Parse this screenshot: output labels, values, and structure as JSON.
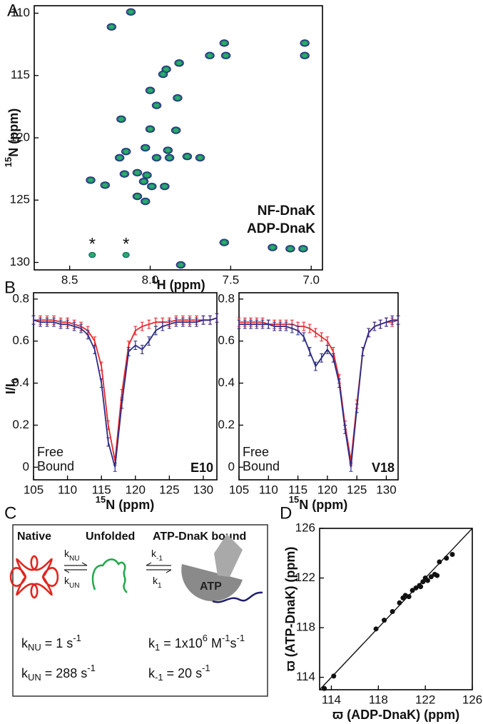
{
  "panel_labels": [
    "A",
    "B",
    "C",
    "D"
  ],
  "chart_data": [
    {
      "type": "scatter",
      "style": "contour",
      "xlabel": [
        {
          "text": "1",
          "pos": "sup"
        },
        {
          "text": "H (ppm)"
        }
      ],
      "ylabel": [
        {
          "text": "15",
          "pos": "sup"
        },
        {
          "text": "N (ppm)"
        }
      ],
      "xlim": [
        8.72,
        6.93
      ],
      "ylim": [
        130.6,
        109.4
      ],
      "xticks": [
        {
          "value": 8.5,
          "label": "8.5"
        },
        {
          "value": 8,
          "label": "8.0"
        },
        {
          "value": 7.5,
          "label": "7.5"
        },
        {
          "value": 7,
          "label": "7.0"
        }
      ],
      "yticks": [
        110,
        115,
        120,
        125,
        130
      ],
      "legend": "lower right",
      "annotations": [
        {
          "text": "*",
          "x": 8.36,
          "y": 128.6
        },
        {
          "text": "*",
          "x": 8.15,
          "y": 128.6
        }
      ],
      "series": [
        {
          "name": "NF-DnaK",
          "color": "#2e2d86",
          "x": [
            8.12,
            8.24,
            7.54,
            7.53,
            7.04,
            7.04,
            7.63,
            7.82,
            7.9,
            7.92,
            8.0,
            7.96,
            7.83,
            8.18,
            7.84,
            8.0,
            8.03,
            8.15,
            7.89,
            8.19,
            7.96,
            7.88,
            7.77,
            7.69,
            8.16,
            8.08,
            8.02,
            8.37,
            8.28,
            8.04,
            7.99,
            7.91,
            8.08,
            8.03,
            7.54,
            7.81,
            7.24,
            7.13,
            7.05
          ],
          "y": [
            109.9,
            111.1,
            112.4,
            113.4,
            112.4,
            113.4,
            113.4,
            114.0,
            114.5,
            114.9,
            116.2,
            117.4,
            116.8,
            118.5,
            119.4,
            119.3,
            120.8,
            121.1,
            121.0,
            121.6,
            121.6,
            121.6,
            121.5,
            121.6,
            122.9,
            122.8,
            123.0,
            123.4,
            123.8,
            123.5,
            123.9,
            123.9,
            124.7,
            125.1,
            128.4,
            130.2,
            128.8,
            128.9,
            128.9
          ]
        },
        {
          "name": "ADP-DnaK",
          "color": "#17a05a",
          "x": [
            8.12,
            8.24,
            7.54,
            7.53,
            7.04,
            7.04,
            7.63,
            7.82,
            7.9,
            7.92,
            8.0,
            7.96,
            7.83,
            8.18,
            7.84,
            8.0,
            8.03,
            8.15,
            7.89,
            8.19,
            7.96,
            7.88,
            7.77,
            7.69,
            8.16,
            8.08,
            8.02,
            8.37,
            8.28,
            8.04,
            7.99,
            7.91,
            8.08,
            8.03,
            7.54,
            7.81,
            7.24,
            7.13,
            7.05,
            8.36,
            8.15
          ],
          "y": [
            109.9,
            111.1,
            112.4,
            113.4,
            112.4,
            113.4,
            113.4,
            114.0,
            114.5,
            114.9,
            116.2,
            117.4,
            116.8,
            118.5,
            119.4,
            119.3,
            120.8,
            121.1,
            121.0,
            121.6,
            121.6,
            121.6,
            121.5,
            121.6,
            122.9,
            122.8,
            123.0,
            123.4,
            123.8,
            123.5,
            123.9,
            123.9,
            124.7,
            125.1,
            128.4,
            130.2,
            128.8,
            128.9,
            128.9,
            129.4,
            129.4
          ]
        }
      ]
    },
    {
      "type": "line",
      "ylabel": [
        {
          "text": "I/I"
        },
        {
          "text": "0",
          "pos": "sub"
        }
      ],
      "xlabel": [
        {
          "text": "15",
          "pos": "sup"
        },
        {
          "text": "N (ppm)"
        }
      ],
      "xlim": [
        105,
        132
      ],
      "ylim": [
        -0.06,
        0.83
      ],
      "xticks": [
        105,
        110,
        115,
        120,
        125,
        130
      ],
      "yticks": [
        0,
        0.2,
        0.4,
        0.6,
        0.8
      ],
      "legend": "lower left",
      "annotation": "E10",
      "x": [
        105,
        106,
        107,
        108,
        109,
        110,
        111,
        112,
        113,
        114,
        115,
        116,
        117,
        118,
        119,
        120,
        121,
        122,
        123,
        124,
        125,
        126,
        127,
        128,
        129,
        130,
        131,
        132
      ],
      "series": [
        {
          "name": "Free",
          "color": "#e8252b",
          "error": 0.02,
          "values": [
            0.7,
            0.7,
            0.7,
            0.7,
            0.69,
            0.69,
            0.68,
            0.67,
            0.65,
            0.6,
            0.48,
            0.2,
            0.03,
            0.35,
            0.58,
            0.65,
            0.67,
            0.68,
            0.69,
            0.69,
            0.69,
            0.7,
            0.7,
            0.7,
            0.7,
            0.7,
            0.7,
            0.71
          ]
        },
        {
          "name": "Bound",
          "color": "#2b2b86",
          "error": 0.02,
          "values": [
            0.7,
            0.69,
            0.69,
            0.69,
            0.68,
            0.68,
            0.67,
            0.66,
            0.63,
            0.56,
            0.4,
            0.12,
            0.0,
            0.3,
            0.55,
            0.58,
            0.56,
            0.6,
            0.65,
            0.67,
            0.68,
            0.69,
            0.69,
            0.69,
            0.69,
            0.7,
            0.7,
            0.71
          ]
        }
      ]
    },
    {
      "type": "line",
      "xlabel": [
        {
          "text": "15",
          "pos": "sup"
        },
        {
          "text": "N (ppm)"
        }
      ],
      "xlim": [
        105,
        132
      ],
      "ylim": [
        -0.06,
        0.83
      ],
      "xticks": [
        105,
        110,
        115,
        120,
        125,
        130
      ],
      "yticks": [
        0,
        0.2,
        0.4,
        0.6,
        0.8
      ],
      "legend": "lower left",
      "annotation": "V18",
      "x": [
        105,
        106,
        107,
        108,
        109,
        110,
        111,
        112,
        113,
        114,
        115,
        116,
        117,
        118,
        119,
        120,
        121,
        122,
        123,
        124,
        125,
        126,
        127,
        128,
        129,
        130,
        131,
        132
      ],
      "series": [
        {
          "name": "Free",
          "color": "#e8252b",
          "error": 0.02,
          "values": [
            0.69,
            0.69,
            0.69,
            0.69,
            0.69,
            0.68,
            0.68,
            0.68,
            0.68,
            0.68,
            0.67,
            0.67,
            0.66,
            0.64,
            0.62,
            0.6,
            0.55,
            0.42,
            0.2,
            0.03,
            0.3,
            0.55,
            0.64,
            0.67,
            0.68,
            0.69,
            0.69,
            0.7
          ]
        },
        {
          "name": "Bound",
          "color": "#2b2b86",
          "error": 0.02,
          "values": [
            0.68,
            0.68,
            0.68,
            0.68,
            0.68,
            0.68,
            0.67,
            0.67,
            0.67,
            0.66,
            0.65,
            0.62,
            0.55,
            0.48,
            0.52,
            0.56,
            0.52,
            0.4,
            0.18,
            0.0,
            0.28,
            0.55,
            0.64,
            0.67,
            0.68,
            0.69,
            0.7,
            0.7
          ]
        }
      ]
    },
    {
      "type": "scatter",
      "style": "dots",
      "diagonal": true,
      "color": "#111111",
      "xlabel": [
        {
          "text": "ϖ (ADP-DnaK) (ppm)"
        }
      ],
      "ylabel": [
        {
          "text": "ϖ (ATP-DnaK) (ppm)"
        }
      ],
      "xlim": [
        113,
        126
      ],
      "ylim": [
        113,
        126
      ],
      "xticks": [
        114,
        118,
        122,
        126
      ],
      "yticks": [
        114,
        118,
        122,
        126
      ],
      "x": [
        114.2,
        117.8,
        118.5,
        119.2,
        119.8,
        120.1,
        120.3,
        120.6,
        120.9,
        121.2,
        121.5,
        121.8,
        122.0,
        122.2,
        122.5,
        122.8,
        123.0,
        123.2,
        123.8,
        124.3,
        121.6,
        113.4
      ],
      "y": [
        114.1,
        117.9,
        118.6,
        119.3,
        120.0,
        120.4,
        120.6,
        120.5,
        121.0,
        121.2,
        121.4,
        121.7,
        122.0,
        121.8,
        122.1,
        122.3,
        122.2,
        123.3,
        123.6,
        123.9,
        121.3,
        113.1
      ]
    }
  ],
  "scheme": {
    "states": [
      "Native",
      "Unfolded",
      "ATP-DnaK bound"
    ],
    "ligand": "ATP",
    "rates": [
      [
        {
          "text": "k"
        },
        {
          "text": "NU",
          "pos": "sub"
        }
      ],
      [
        {
          "text": "k"
        },
        {
          "text": "UN",
          "pos": "sub"
        }
      ],
      [
        {
          "text": "k"
        },
        {
          "text": "-1",
          "pos": "sub"
        }
      ],
      [
        {
          "text": "k"
        },
        {
          "text": "1",
          "pos": "sub"
        }
      ]
    ],
    "equations": [
      [
        {
          "text": "k"
        },
        {
          "text": "NU",
          "pos": "sub"
        },
        {
          "text": " = 1 s"
        },
        {
          "text": "-1",
          "pos": "sup"
        }
      ],
      [
        {
          "text": "k"
        },
        {
          "text": "UN",
          "pos": "sub"
        },
        {
          "text": " = 288 s"
        },
        {
          "text": "-1",
          "pos": "sup"
        }
      ],
      [
        {
          "text": "k"
        },
        {
          "text": "1",
          "pos": "sub"
        },
        {
          "text": " = 1x10"
        },
        {
          "text": "6",
          "pos": "sup"
        },
        {
          "text": " M"
        },
        {
          "text": "-1",
          "pos": "sup"
        },
        {
          "text": "s"
        },
        {
          "text": "-1",
          "pos": "sup"
        }
      ],
      [
        {
          "text": "k"
        },
        {
          "text": "-1",
          "pos": "sub"
        },
        {
          "text": " = 20 s"
        },
        {
          "text": "-1",
          "pos": "sup"
        }
      ]
    ]
  }
}
